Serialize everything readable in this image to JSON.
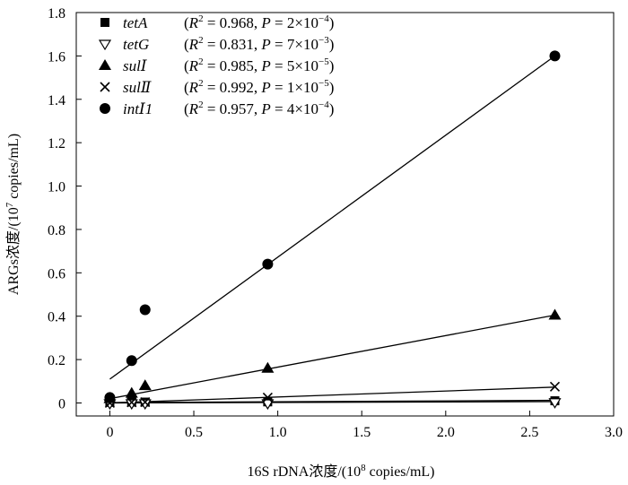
{
  "chart_data": {
    "type": "scatter",
    "xlabel_pre": "16S rDNA浓度/(10",
    "xlabel_sup": "8",
    "xlabel_post": " copies/mL)",
    "ylabel_pre": "ARGs浓度/(10",
    "ylabel_sup": "7",
    "ylabel_post": " copies/mL)",
    "xlim": [
      -0.2,
      3.0
    ],
    "ylim": [
      -0.06,
      1.8
    ],
    "x_ticks": [
      "0",
      "0.5",
      "1.0",
      "1.5",
      "2.0",
      "2.5",
      "3.0"
    ],
    "y_ticks": [
      "0",
      "0.2",
      "0.4",
      "0.6",
      "0.8",
      "1.0",
      "1.2",
      "1.4",
      "1.6",
      "1.8"
    ],
    "grid": false,
    "legend_position": "top-left",
    "series": [
      {
        "name": "tetA",
        "marker": "square-filled",
        "r2": "0.968",
        "p_mant": "2",
        "p_exp": "−4",
        "x": [
          0.0,
          0.13,
          0.21,
          0.94,
          2.65
        ],
        "y": [
          0.003,
          0.004,
          0.004,
          0.005,
          0.01
        ],
        "fit": [
          [
            0.0,
            0.002
          ],
          [
            2.65,
            0.012
          ]
        ]
      },
      {
        "name": "tetG",
        "marker": "triangle-down-open",
        "r2": "0.831",
        "p_mant": "7",
        "p_exp": "−3",
        "x": [
          0.0,
          0.13,
          0.21,
          0.94,
          2.65
        ],
        "y": [
          -0.002,
          -0.002,
          -0.002,
          -0.002,
          0.003
        ],
        "fit": [
          [
            0.0,
            0.0
          ],
          [
            2.65,
            0.006
          ]
        ]
      },
      {
        "name": "sulⅠ",
        "marker": "triangle-up-filled",
        "r2": "0.985",
        "p_mant": "5",
        "p_exp": "−5",
        "x": [
          0.0,
          0.13,
          0.21,
          0.94,
          2.65
        ],
        "y": [
          0.02,
          0.045,
          0.08,
          0.16,
          0.405
        ],
        "fit": [
          [
            0.0,
            0.02
          ],
          [
            2.65,
            0.405
          ]
        ]
      },
      {
        "name": "sulⅡ",
        "marker": "cross",
        "r2": "0.992",
        "p_mant": "1",
        "p_exp": "−5",
        "x": [
          0.0,
          0.13,
          0.21,
          0.94,
          2.65
        ],
        "y": [
          0.0,
          0.003,
          0.004,
          0.025,
          0.075
        ],
        "fit": [
          [
            0.0,
            0.0
          ],
          [
            2.65,
            0.073
          ]
        ]
      },
      {
        "name": "intⅠ1",
        "marker": "circle-filled",
        "r2": "0.957",
        "p_mant": "4",
        "p_exp": "−4",
        "x": [
          0.0,
          0.13,
          0.21,
          0.94,
          2.65
        ],
        "y": [
          0.025,
          0.195,
          0.43,
          0.64,
          1.6
        ],
        "fit": [
          [
            0.0,
            0.11
          ],
          [
            2.65,
            1.6
          ]
        ]
      }
    ]
  }
}
